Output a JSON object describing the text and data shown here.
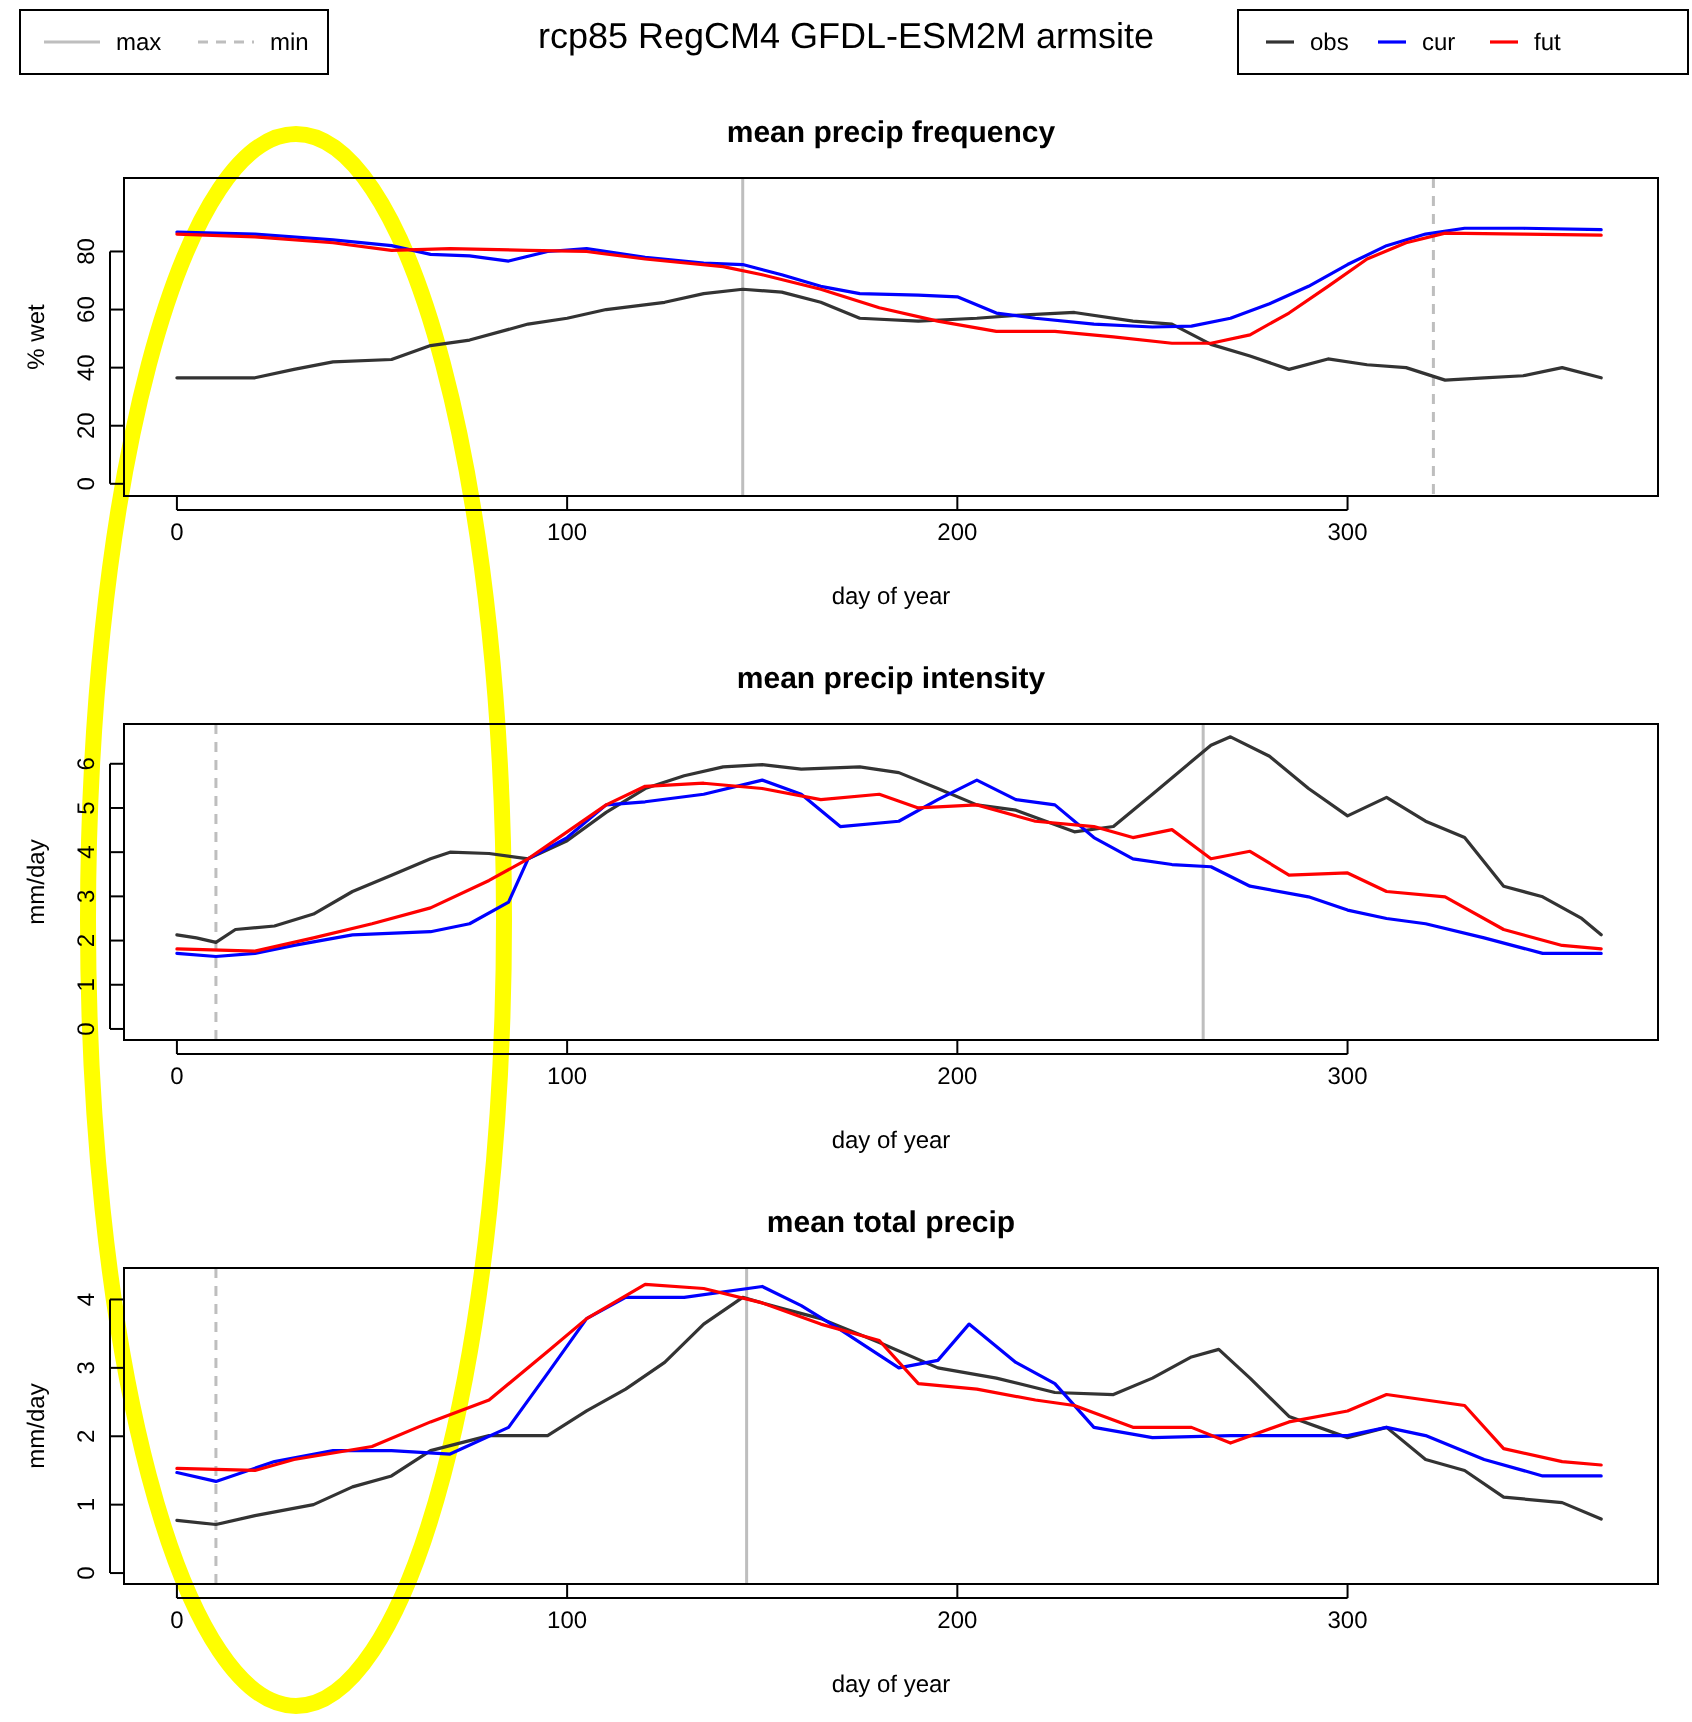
{
  "chart_data": [
    {
      "type": "line",
      "title": "mean precip frequency",
      "xlabel": "day of year",
      "ylabel": "% wet",
      "annotations": [
        "rcp85 RegCM4 GFDL-ESM2M armsite"
      ],
      "xlim": [
        -13.56,
        379.56
      ],
      "xticks": [
        0,
        100,
        200,
        300
      ],
      "ylim": [
        -4.2,
        105.3
      ],
      "yticks": [
        0,
        20,
        40,
        60,
        80
      ],
      "legend": "top",
      "line_style": "solid",
      "ref_lines": [
        {
          "axis": "x",
          "value": 145,
          "label": "max",
          "color": "#bebebe",
          "line_style": "solid"
        },
        {
          "axis": "x",
          "value": 322,
          "label": "min",
          "color": "#bebebe",
          "line_style": "dashed"
        }
      ],
      "series": [
        {
          "name": "obs",
          "color": "#333333",
          "x": [
            0,
            20,
            30,
            40,
            55,
            65,
            75,
            90,
            100,
            110,
            125,
            135,
            145,
            155,
            165,
            175,
            190,
            205,
            215,
            230,
            245,
            255,
            265,
            275,
            285,
            295,
            305,
            315,
            325,
            335,
            345,
            355,
            365
          ],
          "values": [
            36.5,
            36.5,
            39.4,
            42,
            42.8,
            47.6,
            49.5,
            55,
            57,
            60,
            62.5,
            65.5,
            67,
            66,
            62.5,
            57,
            56,
            57,
            58,
            59,
            56,
            55,
            48,
            44,
            39.4,
            43,
            41,
            40,
            35.7,
            36.5,
            37.2,
            40,
            36.5
          ]
        },
        {
          "name": "cur",
          "color": "#0000ff",
          "x": [
            0,
            20,
            40,
            55,
            65,
            75,
            85,
            95,
            105,
            120,
            135,
            145,
            155,
            165,
            175,
            190,
            200,
            210,
            220,
            235,
            250,
            260,
            270,
            280,
            290,
            300,
            310,
            320,
            330,
            345,
            365
          ],
          "values": [
            86.7,
            86,
            84,
            82,
            79,
            78.5,
            76.7,
            80,
            81,
            78,
            76,
            75.5,
            72,
            68,
            65.5,
            65,
            64.4,
            58.8,
            57,
            55,
            54,
            54.3,
            57,
            62,
            68,
            75.5,
            82,
            86,
            88,
            88,
            87.5
          ]
        },
        {
          "name": "fut",
          "color": "#ff0000",
          "x": [
            0,
            20,
            40,
            55,
            70,
            90,
            105,
            120,
            140,
            150,
            165,
            180,
            195,
            210,
            225,
            240,
            255,
            265,
            275,
            285,
            295,
            305,
            315,
            325,
            345,
            365
          ],
          "values": [
            86,
            85,
            83,
            80.4,
            81,
            80.4,
            80,
            77.4,
            74.8,
            72,
            67,
            60.6,
            56,
            52.5,
            52.5,
            50.6,
            48.4,
            48.4,
            51.3,
            58.8,
            68,
            77.4,
            83,
            86.3,
            86,
            85.6
          ]
        }
      ]
    },
    {
      "type": "line",
      "title": "mean precip intensity",
      "xlabel": "day of year",
      "ylabel": "mm/day",
      "xlim": [
        -13.56,
        379.56
      ],
      "xticks": [
        0,
        100,
        200,
        300
      ],
      "ylim": [
        -0.25,
        6.9
      ],
      "yticks": [
        0,
        1,
        2,
        3,
        4,
        5,
        6
      ],
      "line_style": "solid",
      "ref_lines": [
        {
          "axis": "x",
          "value": 10,
          "color": "#bebebe",
          "line_style": "dashed"
        },
        {
          "axis": "x",
          "value": 263,
          "color": "#bebebe",
          "line_style": "solid"
        }
      ],
      "series": [
        {
          "color": "#333333",
          "x": [
            0,
            5,
            10,
            15,
            25,
            35,
            45,
            55,
            65,
            70,
            80,
            90,
            100,
            110,
            120,
            130,
            140,
            150,
            160,
            175,
            185,
            195,
            205,
            215,
            230,
            240,
            250,
            260,
            265,
            270,
            280,
            290,
            300,
            310,
            320,
            330,
            340,
            350,
            360,
            365
          ],
          "values": [
            2.13,
            2.06,
            1.96,
            2.25,
            2.33,
            2.6,
            3.11,
            3.48,
            3.85,
            4.0,
            3.97,
            3.85,
            4.26,
            4.9,
            5.44,
            5.73,
            5.93,
            5.98,
            5.88,
            5.93,
            5.8,
            5.44,
            5.07,
            4.95,
            4.46,
            4.58,
            5.31,
            6.05,
            6.42,
            6.61,
            6.17,
            5.44,
            4.82,
            5.24,
            4.7,
            4.33,
            3.23,
            2.99,
            2.5,
            2.13
          ]
        },
        {
          "color": "#0000ff",
          "x": [
            0,
            10,
            20,
            30,
            45,
            65,
            75,
            85,
            90,
            100,
            110,
            120,
            135,
            150,
            160,
            170,
            185,
            195,
            205,
            215,
            225,
            235,
            245,
            255,
            265,
            275,
            290,
            300,
            310,
            320,
            335,
            350,
            365
          ],
          "values": [
            1.71,
            1.64,
            1.71,
            1.89,
            2.13,
            2.2,
            2.38,
            2.87,
            3.85,
            4.33,
            5.07,
            5.14,
            5.31,
            5.63,
            5.31,
            4.58,
            4.7,
            5.19,
            5.63,
            5.19,
            5.07,
            4.33,
            3.85,
            3.72,
            3.67,
            3.23,
            2.99,
            2.69,
            2.5,
            2.38,
            2.06,
            1.71,
            1.71
          ]
        },
        {
          "color": "#ff0000",
          "x": [
            0,
            20,
            35,
            50,
            65,
            80,
            90,
            100,
            110,
            120,
            135,
            150,
            165,
            180,
            190,
            205,
            220,
            235,
            245,
            255,
            265,
            275,
            285,
            300,
            310,
            325,
            340,
            355,
            365
          ],
          "values": [
            1.81,
            1.76,
            2.06,
            2.38,
            2.74,
            3.36,
            3.85,
            4.46,
            5.07,
            5.49,
            5.56,
            5.44,
            5.19,
            5.31,
            5.0,
            5.07,
            4.7,
            4.58,
            4.33,
            4.51,
            3.85,
            4.02,
            3.48,
            3.53,
            3.11,
            2.99,
            2.25,
            1.89,
            1.81
          ]
        }
      ]
    },
    {
      "type": "line",
      "title": "mean total precip",
      "xlabel": "day of year",
      "ylabel": "mm/day",
      "xlim": [
        -13.56,
        379.56
      ],
      "xticks": [
        0,
        100,
        200,
        300
      ],
      "ylim": [
        -0.16,
        4.46
      ],
      "yticks": [
        0,
        1,
        2,
        3,
        4
      ],
      "line_style": "solid",
      "ref_lines": [
        {
          "axis": "x",
          "value": 10,
          "color": "#bebebe",
          "line_style": "dashed"
        },
        {
          "axis": "x",
          "value": 146,
          "color": "#bebebe",
          "line_style": "solid"
        }
      ],
      "series": [
        {
          "color": "#333333",
          "x": [
            0,
            10,
            20,
            35,
            45,
            55,
            65,
            80,
            95,
            105,
            115,
            125,
            135,
            145,
            155,
            165,
            180,
            195,
            210,
            225,
            240,
            250,
            260,
            267,
            275,
            285,
            300,
            310,
            320,
            330,
            340,
            355,
            365
          ],
          "values": [
            0.77,
            0.71,
            0.84,
            1.0,
            1.26,
            1.42,
            1.79,
            2.01,
            2.01,
            2.37,
            2.69,
            3.08,
            3.64,
            4.03,
            3.87,
            3.72,
            3.37,
            3.0,
            2.85,
            2.64,
            2.61,
            2.85,
            3.16,
            3.27,
            2.85,
            2.29,
            1.98,
            2.13,
            1.66,
            1.5,
            1.11,
            1.03,
            0.79
          ]
        },
        {
          "color": "#0000ff",
          "x": [
            0,
            10,
            25,
            40,
            55,
            70,
            85,
            95,
            105,
            115,
            130,
            150,
            160,
            170,
            185,
            195,
            203,
            215,
            225,
            235,
            250,
            270,
            285,
            300,
            310,
            320,
            335,
            350,
            365
          ],
          "values": [
            1.47,
            1.34,
            1.63,
            1.79,
            1.79,
            1.74,
            2.13,
            2.92,
            3.72,
            4.03,
            4.03,
            4.19,
            3.91,
            3.56,
            3.0,
            3.11,
            3.64,
            3.08,
            2.77,
            2.13,
            1.98,
            2.01,
            2.01,
            2.01,
            2.13,
            2.01,
            1.66,
            1.42,
            1.42
          ]
        },
        {
          "color": "#ff0000",
          "x": [
            0,
            20,
            30,
            50,
            65,
            80,
            95,
            105,
            120,
            135,
            150,
            165,
            180,
            190,
            205,
            220,
            230,
            245,
            260,
            270,
            285,
            300,
            310,
            320,
            330,
            340,
            355,
            365
          ],
          "values": [
            1.53,
            1.5,
            1.66,
            1.85,
            2.21,
            2.53,
            3.24,
            3.72,
            4.22,
            4.16,
            3.95,
            3.64,
            3.4,
            2.77,
            2.69,
            2.53,
            2.45,
            2.13,
            2.13,
            1.9,
            2.21,
            2.37,
            2.61,
            2.53,
            2.45,
            1.82,
            1.63,
            1.58
          ]
        }
      ]
    }
  ]
}
